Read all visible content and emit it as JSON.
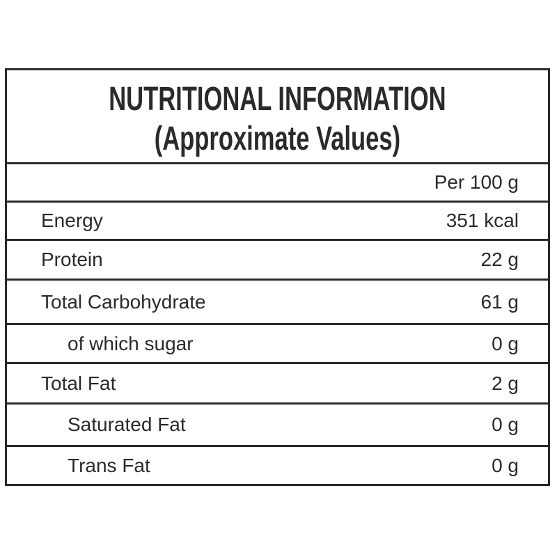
{
  "title": {
    "line1": "NUTRITIONAL INFORMATION",
    "line2": "(Approximate Values)"
  },
  "header": {
    "per_quantity": "Per 100 g"
  },
  "rows": [
    {
      "name": "Energy",
      "value": "351 kcal",
      "indent": false
    },
    {
      "name": "Protein",
      "value": "22 g",
      "indent": false
    },
    {
      "name": "Total Carbohydrate",
      "value": "61 g",
      "indent": false
    },
    {
      "name": "of which sugar",
      "value": "0 g",
      "indent": true
    },
    {
      "name": "Total Fat",
      "value": "2 g",
      "indent": false
    },
    {
      "name": "Saturated Fat",
      "value": "0 g",
      "indent": true
    },
    {
      "name": "Trans Fat",
      "value": "0 g",
      "indent": true
    }
  ],
  "colors": {
    "ink": "#2b2a2a",
    "background": "#ffffff"
  }
}
